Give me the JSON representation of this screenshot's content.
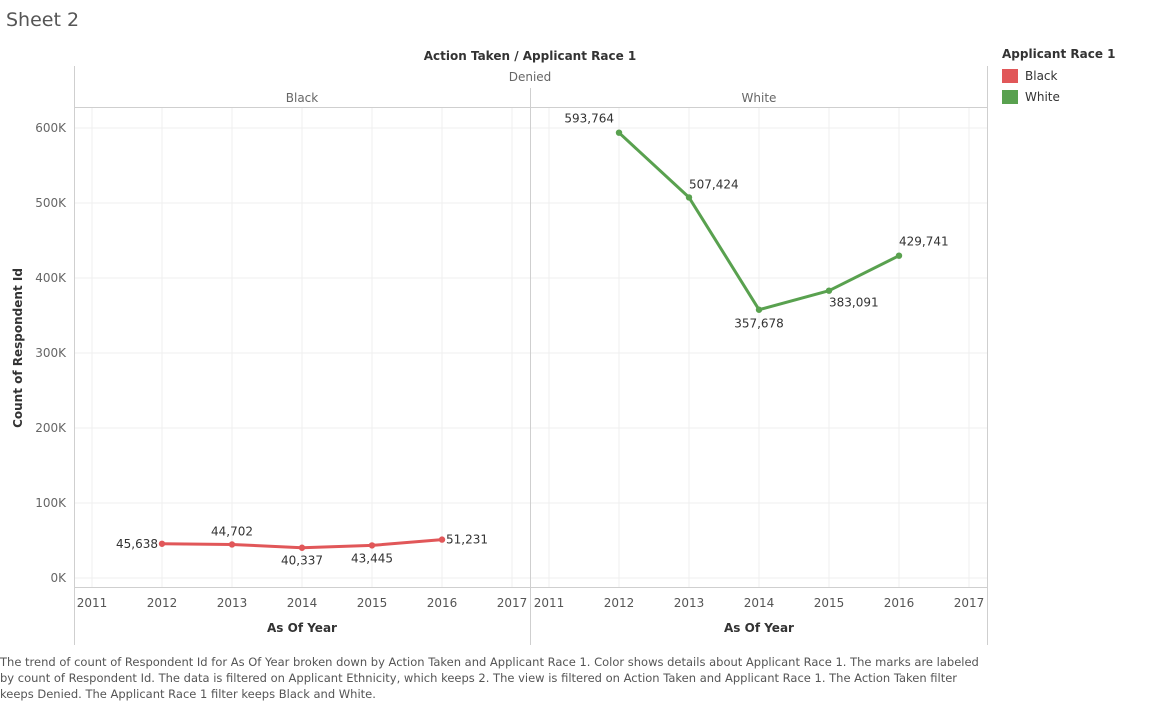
{
  "sheet_title": "Sheet 2",
  "caption": "The trend of count of Respondent Id for As Of Year broken down by Action Taken and Applicant Race 1.  Color shows details about Applicant Race 1.  The marks are labeled by count of Respondent Id. The data is filtered on Applicant Ethnicity, which keeps 2. The view is filtered on Action Taken and Applicant Race 1. The Action Taken filter keeps Denied. The Applicant Race 1 filter keeps Black and White.",
  "legend": {
    "title": "Applicant Race 1",
    "items": [
      {
        "label": "Black",
        "color": "#e15759"
      },
      {
        "label": "White",
        "color": "#59a14f"
      }
    ]
  },
  "chart_data": {
    "type": "line",
    "header_title": "Action Taken / Applicant Race 1",
    "header_group": "Denied",
    "ylabel": "Count of Respondent Id",
    "xlabel": "As Of Year",
    "ylim": [
      0,
      600000
    ],
    "y_ticks": [
      {
        "value": 0,
        "label": "0K"
      },
      {
        "value": 100000,
        "label": "100K"
      },
      {
        "value": 200000,
        "label": "200K"
      },
      {
        "value": 300000,
        "label": "300K"
      },
      {
        "value": 400000,
        "label": "400K"
      },
      {
        "value": 500000,
        "label": "500K"
      },
      {
        "value": 600000,
        "label": "600K"
      }
    ],
    "x_ticks": [
      2011,
      2012,
      2013,
      2014,
      2015,
      2016,
      2017
    ],
    "panels": [
      {
        "name": "Black",
        "color": "#e15759",
        "points": [
          {
            "x": 2012,
            "y": 45638,
            "label": "45,638"
          },
          {
            "x": 2013,
            "y": 44702,
            "label": "44,702"
          },
          {
            "x": 2014,
            "y": 40337,
            "label": "40,337"
          },
          {
            "x": 2015,
            "y": 43445,
            "label": "43,445"
          },
          {
            "x": 2016,
            "y": 51231,
            "label": "51,231"
          }
        ]
      },
      {
        "name": "White",
        "color": "#59a14f",
        "points": [
          {
            "x": 2012,
            "y": 593764,
            "label": "593,764"
          },
          {
            "x": 2013,
            "y": 507424,
            "label": "507,424"
          },
          {
            "x": 2014,
            "y": 357678,
            "label": "357,678"
          },
          {
            "x": 2015,
            "y": 383091,
            "label": "383,091"
          },
          {
            "x": 2016,
            "y": 429741,
            "label": "429,741"
          }
        ]
      }
    ]
  }
}
